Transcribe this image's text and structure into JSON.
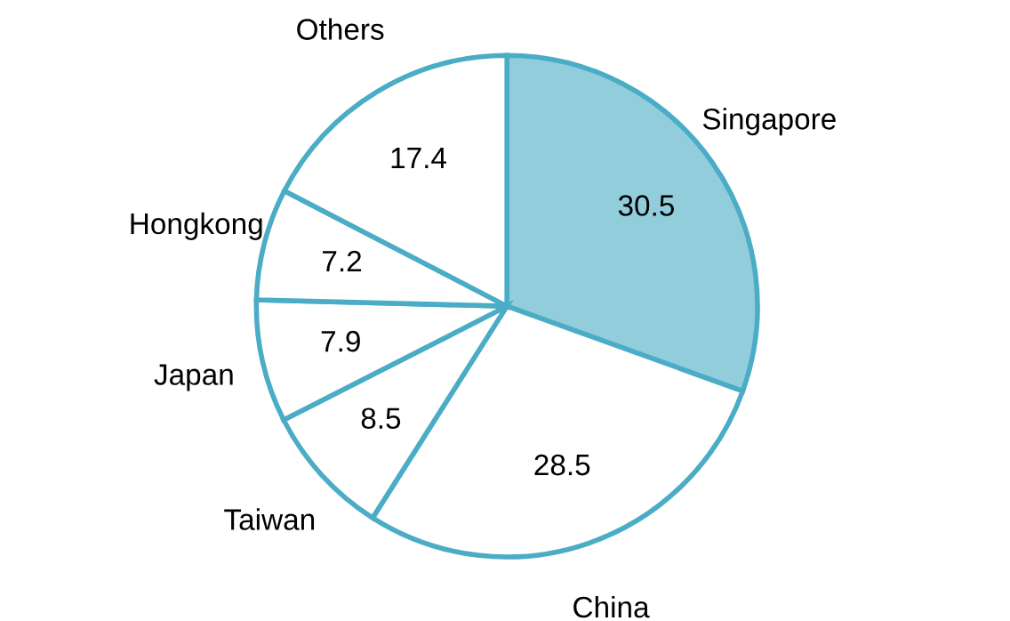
{
  "chart_data": {
    "type": "pie",
    "categories": [
      "Singapore",
      "China",
      "Taiwan",
      "Japan",
      "Hongkong",
      "Others"
    ],
    "values": [
      30.5,
      28.5,
      8.5,
      7.9,
      7.2,
      17.4
    ],
    "colors": [
      "#92cddc",
      "#ffffff",
      "#ffffff",
      "#ffffff",
      "#ffffff",
      "#ffffff"
    ],
    "data_labels": true
  }
}
